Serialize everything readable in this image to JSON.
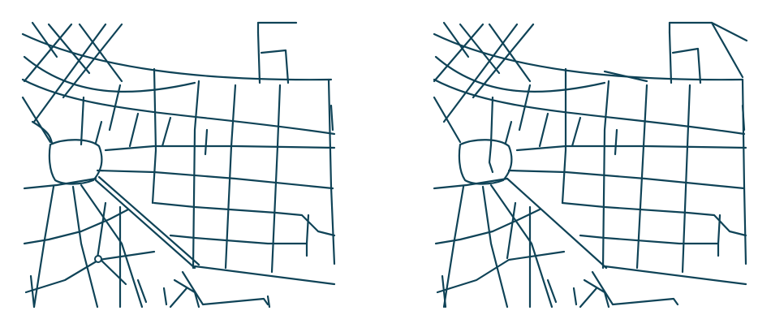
{
  "style": {
    "road_color": "#0f4357",
    "background": "#ffffff"
  },
  "panels": [
    {
      "id": "left",
      "variant": "original-street-network"
    },
    {
      "id": "right",
      "variant": "simplified-street-network"
    }
  ]
}
